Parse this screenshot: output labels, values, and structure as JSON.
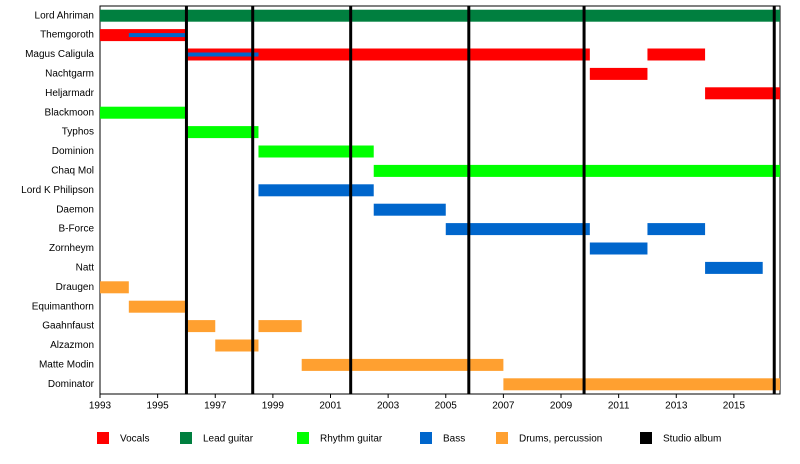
{
  "chart_data": {
    "type": "timeline",
    "categories": [
      "Lord Ahriman",
      "Themgoroth",
      "Magus Caligula",
      "Nachtgarm",
      "Heljarmadr",
      "Blackmoon",
      "Typhos",
      "Dominion",
      "Chaq Mol",
      "Lord K Philipson",
      "Daemon",
      "B-Force",
      "Zornheym",
      "Natt",
      "Draugen",
      "Equimanthorn",
      "Gaahnfaust",
      "Alzazmon",
      "Matte Modin",
      "Dominator"
    ],
    "series": [
      {
        "name": "Vocals",
        "color": "#ff0000",
        "bars": [
          {
            "row": "Themgoroth",
            "start": 1993,
            "end": 1996
          },
          {
            "row": "Magus Caligula",
            "start": 1996,
            "end": 2010
          },
          {
            "row": "Magus Caligula",
            "start": 2012,
            "end": 2014
          },
          {
            "row": "Nachtgarm",
            "start": 2010,
            "end": 2012
          },
          {
            "row": "Heljarmadr",
            "start": 2014,
            "end": 2016.6
          }
        ]
      },
      {
        "name": "Lead guitar",
        "color": "#007f3f",
        "bars": [
          {
            "row": "Lord Ahriman",
            "start": 1993,
            "end": 2016.6
          }
        ]
      },
      {
        "name": "Rhythm guitar",
        "color": "#00ff00",
        "bars": [
          {
            "row": "Blackmoon",
            "start": 1993,
            "end": 1996
          },
          {
            "row": "Typhos",
            "start": 1996,
            "end": 1998.5
          },
          {
            "row": "Dominion",
            "start": 1998.5,
            "end": 2002.5
          },
          {
            "row": "Chaq Mol",
            "start": 2002.5,
            "end": 2016.6
          }
        ]
      },
      {
        "name": "Bass",
        "color": "#0066cc",
        "bars": [
          {
            "row": "Themgoroth",
            "start": 1994,
            "end": 1996
          },
          {
            "row": "Magus Caligula",
            "start": 1996,
            "end": 1998.5
          },
          {
            "row": "Lord K Philipson",
            "start": 1998.5,
            "end": 2002.5
          },
          {
            "row": "Daemon",
            "start": 2002.5,
            "end": 2005
          },
          {
            "row": "B-Force",
            "start": 2005,
            "end": 2010
          },
          {
            "row": "B-Force",
            "start": 2012,
            "end": 2014
          },
          {
            "row": "Zornheym",
            "start": 2010,
            "end": 2012
          },
          {
            "row": "Natt",
            "start": 2014,
            "end": 2016
          }
        ]
      },
      {
        "name": "Drums, percussion",
        "color": "#ffa030",
        "bars": [
          {
            "row": "Draugen",
            "start": 1993,
            "end": 1994
          },
          {
            "row": "Equimanthorn",
            "start": 1994,
            "end": 1996
          },
          {
            "row": "Gaahnfaust",
            "start": 1996,
            "end": 1997
          },
          {
            "row": "Gaahnfaust",
            "start": 1998.5,
            "end": 2000
          },
          {
            "row": "Alzazmon",
            "start": 1997,
            "end": 1998.5
          },
          {
            "row": "Matte Modin",
            "start": 2000,
            "end": 2007
          },
          {
            "row": "Dominator",
            "start": 2007,
            "end": 2016.6
          }
        ]
      }
    ],
    "albums": {
      "name": "Studio album",
      "color": "#000000",
      "values": [
        1996,
        1998.3,
        2001.7,
        2005.8,
        2009.8,
        2016.4
      ]
    },
    "xlim": [
      1993,
      2016.6
    ],
    "xticks": [
      1993,
      1995,
      1997,
      1999,
      2001,
      2003,
      2005,
      2007,
      2009,
      2011,
      2013,
      2015
    ]
  }
}
